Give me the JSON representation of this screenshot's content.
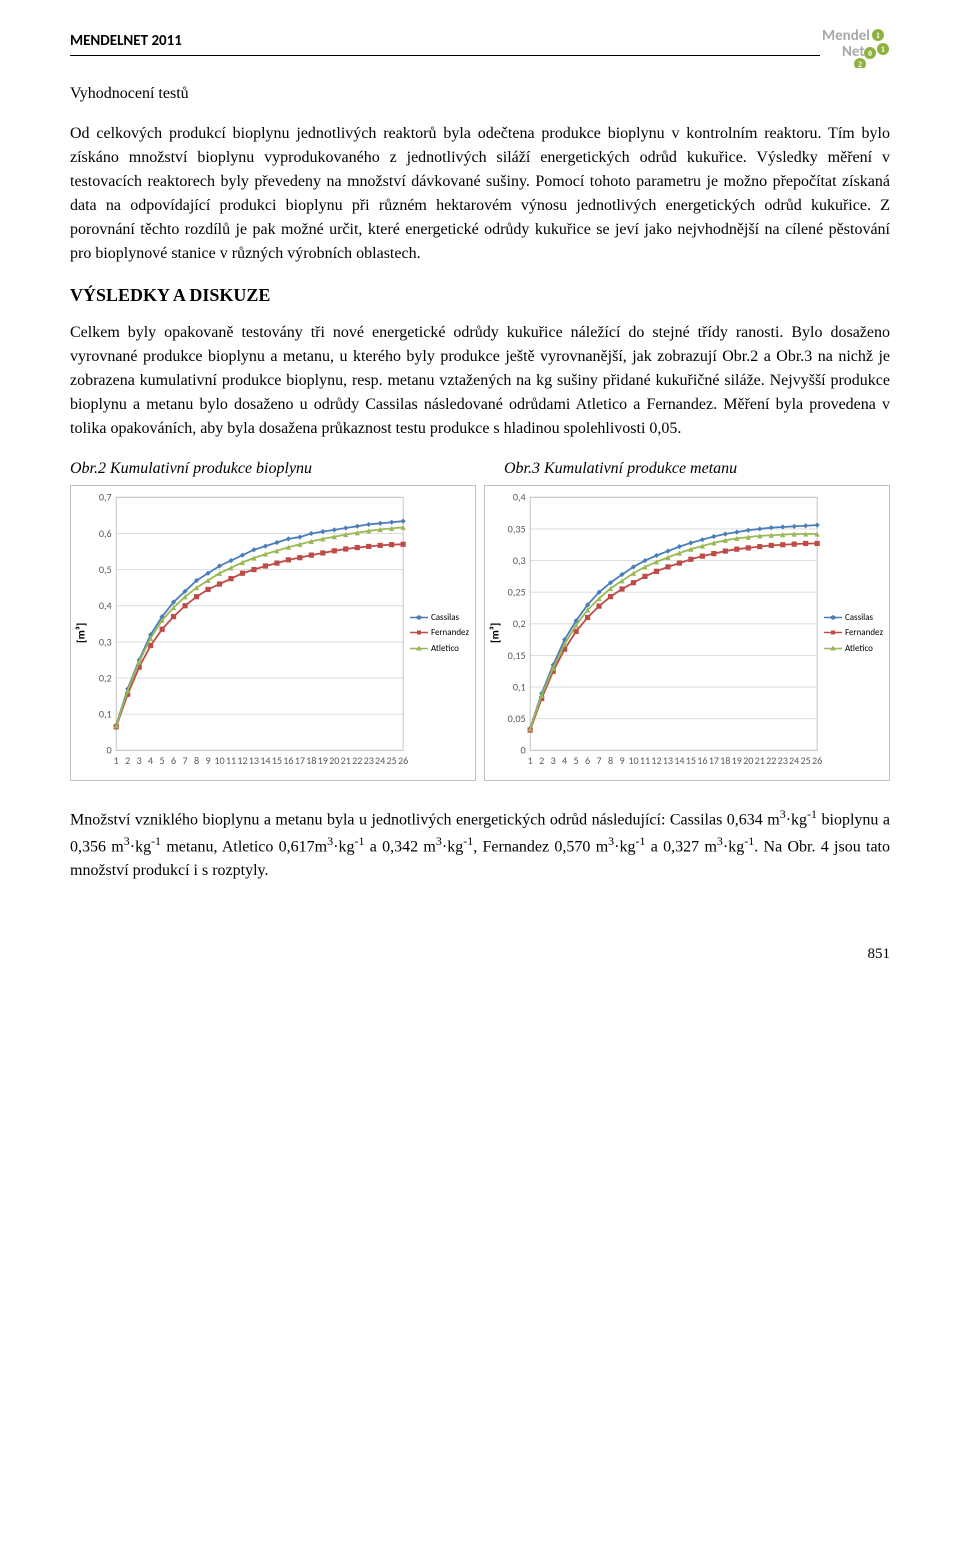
{
  "header": {
    "running_head": "MENDELNET 2011",
    "logo_text_top": "Mendel",
    "logo_text_bottom": "Net",
    "logo_color_text": "#a9a9a9",
    "logo_color_circle": "#8fb23f",
    "logo_digits": [
      "1",
      "1",
      "0",
      "2"
    ]
  },
  "subtitle": "Vyhodnocení testů",
  "para1": "Od celkových produkcí bioplynu jednotlivých reaktorů byla odečtena produkce bioplynu v kontrolním reaktoru. Tím bylo získáno množství bioplynu vyprodukovaného z jednotlivých siláží energetických odrůd kukuřice. Výsledky měření v testovacích reaktorech byly převedeny na množství dávkované sušiny. Pomocí tohoto parametru je možno přepočítat získaná data na odpovídající produkci bioplynu při různém hektarovém výnosu jednotlivých energetických odrůd kukuřice. Z porovnání těchto rozdílů je pak možné určit, které energetické odrůdy kukuřice se jeví jako nejvhodnější na cílené pěstování pro bioplynové stanice v různých výrobních oblastech.",
  "h2": "VÝSLEDKY A DISKUZE",
  "para2": "Celkem byly opakovaně testovány tři nové energetické odrůdy kukuřice náležící do stejné třídy ranosti. Bylo dosaženo vyrovnané produkce bioplynu a metanu, u kterého byly produkce ještě vyrovnanější, jak zobrazují Obr.2 a Obr.3 na nichž je zobrazena kumulativní produkce bioplynu, resp. metanu vztažených na kg sušiny přidané kukuřičné siláže. Nejvyšší produkce bioplynu a metanu bylo dosaženo u odrůdy Cassilas následované odrůdami Atletico a Fernandez. Měření byla provedena v tolika opakováních, aby byla dosažena průkaznost testu produkce s hladinou spolehlivosti 0,05.",
  "fig2_caption": "Obr.2 Kumulativní produkce bioplynu",
  "fig3_caption": "Obr.3 Kumulativní produkce metanu",
  "chart_common": {
    "x_count": 26,
    "x_labels": [
      "1",
      "2",
      "3",
      "4",
      "5",
      "6",
      "7",
      "8",
      "9",
      "10",
      "11",
      "12",
      "13",
      "14",
      "15",
      "16",
      "17",
      "18",
      "19",
      "20",
      "21",
      "22",
      "23",
      "24",
      "25",
      "26"
    ],
    "ylabel": "[m³]",
    "font_family": "Calibri, Arial, sans-serif",
    "tick_fontsize": 9,
    "ylabel_fontsize": 10,
    "background_color": "#ffffff",
    "grid_color": "#d9d9d9",
    "border_color": "#bfbfbf",
    "line_width": 1.6,
    "marker_size": 2.3
  },
  "chart_left": {
    "ymax": 0.7,
    "ytick_step": 0.1,
    "yticks": [
      "0",
      "0,1",
      "0,2",
      "0,3",
      "0,4",
      "0,5",
      "0,6",
      "0,7"
    ],
    "series": [
      {
        "name": "Cassilas",
        "color": "#4a7ebb",
        "marker": "diamond",
        "values": [
          0.07,
          0.17,
          0.25,
          0.32,
          0.37,
          0.41,
          0.44,
          0.47,
          0.49,
          0.51,
          0.525,
          0.54,
          0.555,
          0.565,
          0.575,
          0.585,
          0.59,
          0.6,
          0.605,
          0.61,
          0.615,
          0.62,
          0.625,
          0.628,
          0.631,
          0.634
        ]
      },
      {
        "name": "Fernandez",
        "color": "#be4b48",
        "marker": "square",
        "values": [
          0.065,
          0.155,
          0.23,
          0.29,
          0.335,
          0.37,
          0.4,
          0.425,
          0.445,
          0.46,
          0.475,
          0.49,
          0.5,
          0.51,
          0.518,
          0.527,
          0.533,
          0.54,
          0.546,
          0.552,
          0.557,
          0.561,
          0.564,
          0.567,
          0.569,
          0.57
        ]
      },
      {
        "name": "Atletico",
        "color": "#98b954",
        "marker": "triangle",
        "values": [
          0.068,
          0.165,
          0.245,
          0.31,
          0.36,
          0.395,
          0.425,
          0.45,
          0.47,
          0.49,
          0.505,
          0.52,
          0.532,
          0.543,
          0.552,
          0.562,
          0.57,
          0.578,
          0.585,
          0.591,
          0.597,
          0.602,
          0.607,
          0.611,
          0.614,
          0.617
        ]
      }
    ]
  },
  "chart_right": {
    "ymax": 0.4,
    "ytick_step": 0.05,
    "yticks": [
      "0",
      "0,05",
      "0,1",
      "0,15",
      "0,2",
      "0,25",
      "0,3",
      "0,35",
      "0,4"
    ],
    "series": [
      {
        "name": "Cassilas",
        "color": "#4a7ebb",
        "marker": "diamond",
        "values": [
          0.035,
          0.09,
          0.135,
          0.175,
          0.205,
          0.23,
          0.25,
          0.265,
          0.278,
          0.29,
          0.3,
          0.308,
          0.315,
          0.322,
          0.328,
          0.333,
          0.338,
          0.342,
          0.345,
          0.348,
          0.35,
          0.352,
          0.353,
          0.354,
          0.355,
          0.356
        ]
      },
      {
        "name": "Fernandez",
        "color": "#be4b48",
        "marker": "square",
        "values": [
          0.032,
          0.082,
          0.125,
          0.16,
          0.188,
          0.21,
          0.228,
          0.243,
          0.255,
          0.265,
          0.275,
          0.283,
          0.29,
          0.296,
          0.302,
          0.307,
          0.311,
          0.315,
          0.318,
          0.32,
          0.322,
          0.324,
          0.325,
          0.326,
          0.327,
          0.327
        ]
      },
      {
        "name": "Atletico",
        "color": "#98b954",
        "marker": "triangle",
        "values": [
          0.034,
          0.087,
          0.13,
          0.168,
          0.198,
          0.222,
          0.24,
          0.256,
          0.268,
          0.28,
          0.29,
          0.298,
          0.305,
          0.312,
          0.318,
          0.323,
          0.328,
          0.332,
          0.335,
          0.337,
          0.339,
          0.34,
          0.341,
          0.342,
          0.342,
          0.342
        ]
      }
    ]
  },
  "legend_items": [
    {
      "label": "Cassilas",
      "color": "#4a7ebb",
      "marker": "diamond"
    },
    {
      "label": "Fernandez",
      "color": "#be4b48",
      "marker": "square"
    },
    {
      "label": "Atletico",
      "color": "#98b954",
      "marker": "triangle"
    }
  ],
  "para3_html": "Množství vzniklého bioplynu a metanu byla u jednotlivých energetických odrůd následující: Cassilas 0,634 m<sup>3</sup>·kg<sup>-1</sup> bioplynu a 0,356 m<sup>3</sup>·kg<sup>-1</sup> metanu, Atletico 0,617m<sup>3</sup>·kg<sup>-1</sup> a 0,342 m<sup>3</sup>·kg<sup>-1</sup>, Fernandez 0,570 m<sup>3</sup>·kg<sup>-1</sup> a 0,327 m<sup>3</sup>·kg<sup>-1</sup>. Na Obr. 4 jsou tato množství produkcí i s rozptyly.",
  "page_number": "851"
}
